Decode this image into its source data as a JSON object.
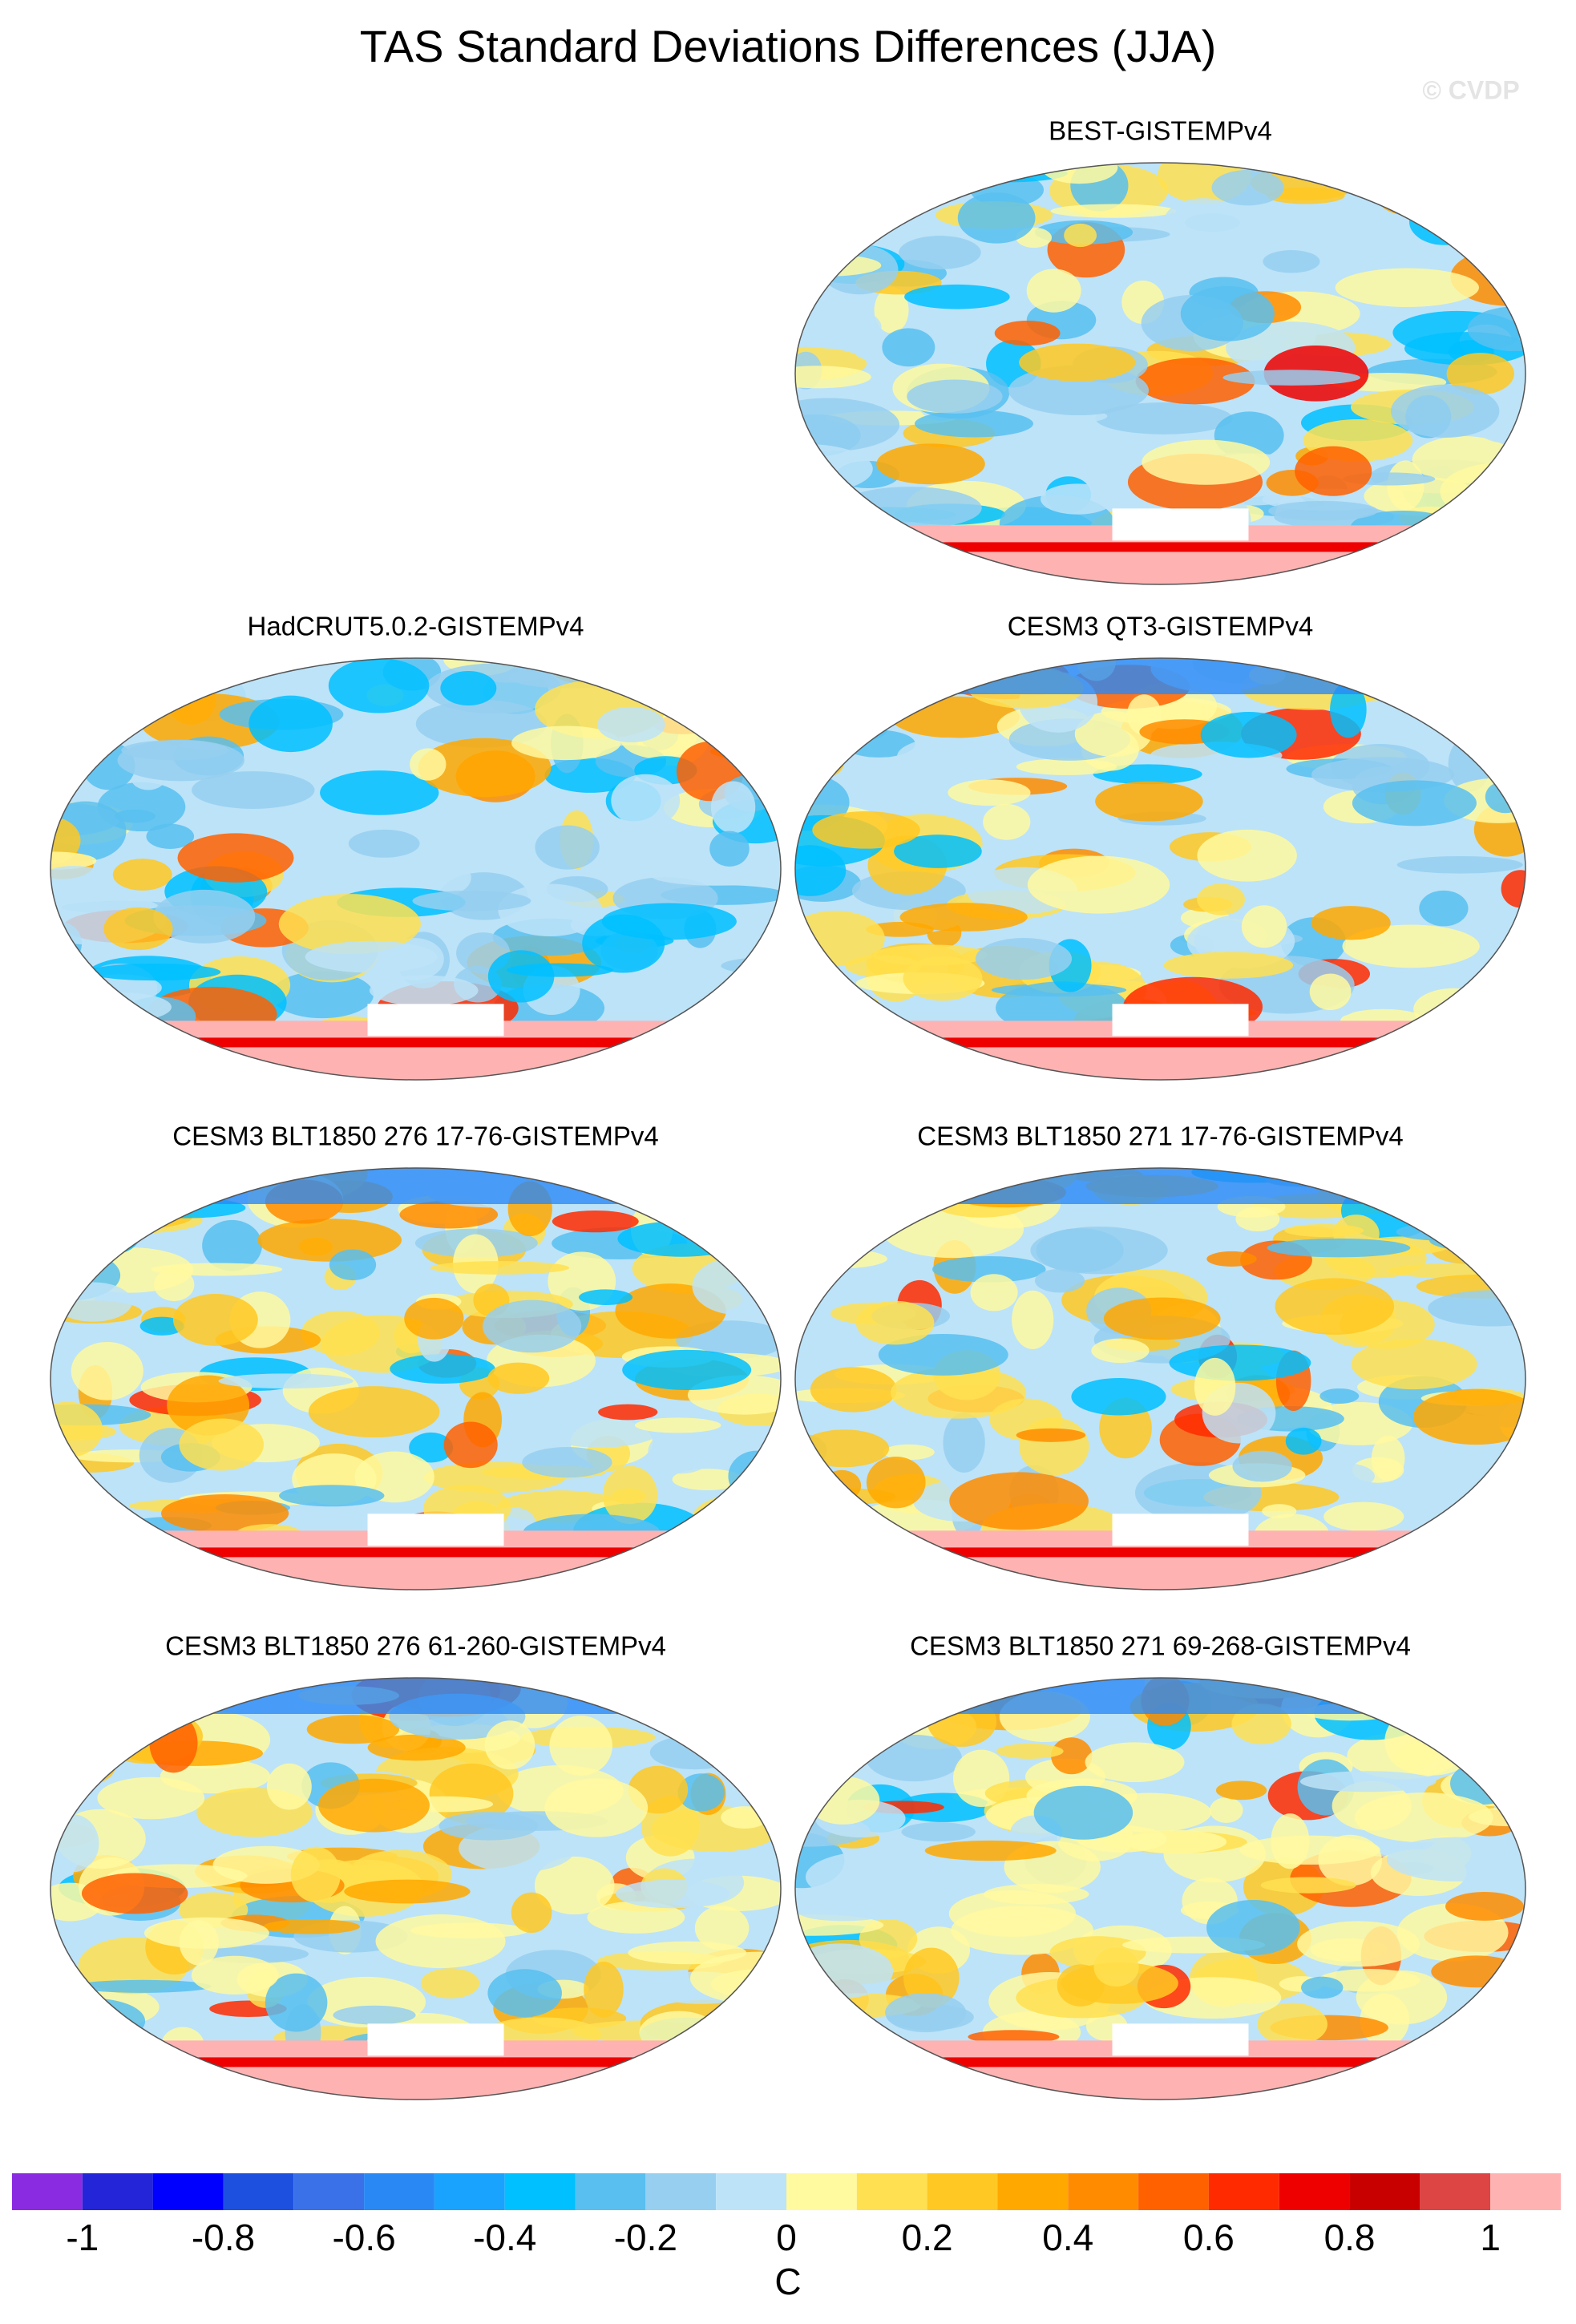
{
  "title": "TAS Standard Deviations Differences (JJA)",
  "watermark": "© CVDP",
  "panels": [
    {
      "title": "BEST-GISTEMPv4"
    },
    {
      "title": "HadCRUT5.0.2-GISTEMPv4"
    },
    {
      "title": "CESM3 QT3-GISTEMPv4"
    },
    {
      "title": "CESM3 BLT1850 276 17-76-GISTEMPv4"
    },
    {
      "title": "CESM3 BLT1850 271 17-76-GISTEMPv4"
    },
    {
      "title": "CESM3 BLT1850 276 61-260-GISTEMPv4"
    },
    {
      "title": "CESM3 BLT1850 271 69-268-GISTEMPv4"
    }
  ],
  "colorbar": {
    "label": "C",
    "levels": [
      -1,
      -0.9,
      -0.8,
      -0.7,
      -0.6,
      -0.5,
      -0.4,
      -0.3,
      -0.2,
      -0.1,
      0,
      0.1,
      0.2,
      0.3,
      0.4,
      0.5,
      0.6,
      0.7,
      0.8,
      0.9,
      1
    ],
    "ticks": [
      -1,
      -0.8,
      -0.6,
      -0.4,
      -0.2,
      0,
      0.2,
      0.4,
      0.6,
      0.8,
      1
    ],
    "colors": [
      "#8a2be2",
      "#2424d8",
      "#0000ff",
      "#1e50e0",
      "#3a70e8",
      "#2a88f5",
      "#1aa2ff",
      "#00c0ff",
      "#58bff0",
      "#96cff0",
      "#bde3f8",
      "#fff9a0",
      "#ffe050",
      "#ffc822",
      "#ffa800",
      "#ff8c00",
      "#ff6000",
      "#ff2a00",
      "#ee0000",
      "#c80000",
      "#dd4444",
      "#ffb2b2"
    ]
  }
}
